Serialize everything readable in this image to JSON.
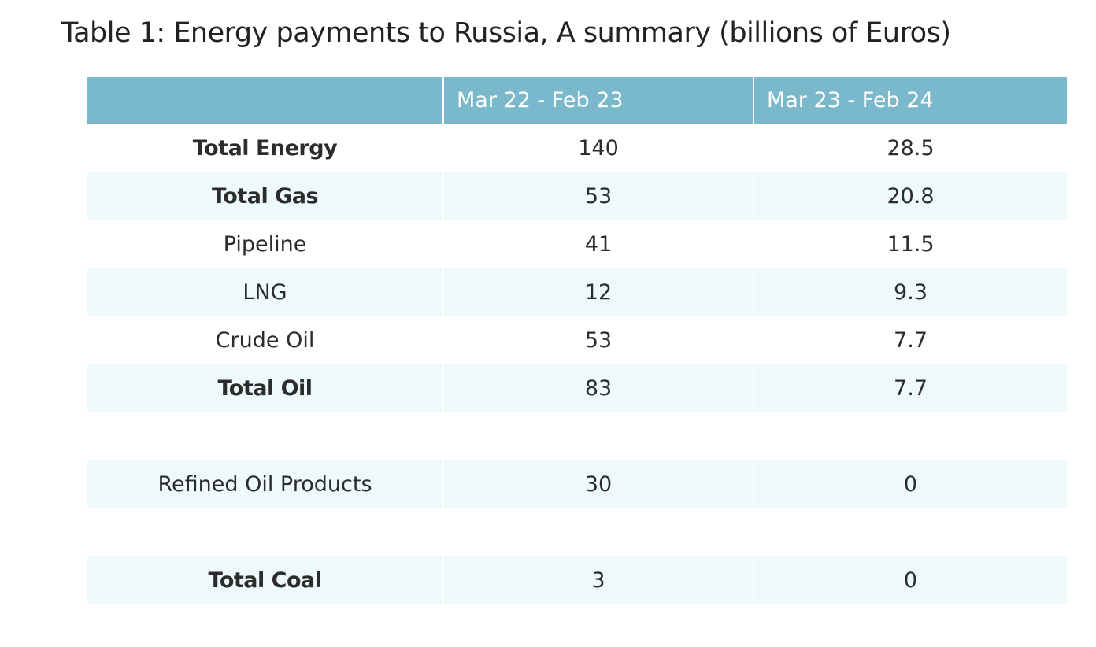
{
  "title": "Table 1: Energy payments to Russia, A summary (billions of Euros)",
  "columns": [
    "",
    "Mar 22 - Feb 23",
    "Mar 23 - Feb 24"
  ],
  "rows": [
    {
      "label": "Total Energy",
      "v1": "140",
      "v2": "28.5",
      "bold": true
    },
    {
      "label": "Total Gas",
      "v1": "53",
      "v2": "20.8",
      "bold": true
    },
    {
      "label": "Pipeline",
      "v1": "41",
      "v2": "11.5",
      "bold": false
    },
    {
      "label": "LNG",
      "v1": "12",
      "v2": "9.3",
      "bold": false
    },
    {
      "label": "Crude Oil",
      "v1": "53",
      "v2": "7.7",
      "bold": false
    },
    {
      "label": "Total Oil",
      "v1": "83",
      "v2": "7.7",
      "bold": true
    },
    {
      "label": "",
      "v1": "",
      "v2": "",
      "bold": false
    },
    {
      "label": "Refined Oil Products",
      "v1": "30",
      "v2": "0",
      "bold": false
    },
    {
      "label": "",
      "v1": "",
      "v2": "",
      "bold": false
    },
    {
      "label": "Total Coal",
      "v1": "3",
      "v2": "0",
      "bold": true
    }
  ],
  "colors": {
    "header_bg": "#7ab8cb",
    "stripe_bg": "#edf9fa",
    "white_bg": "#ffffff"
  }
}
